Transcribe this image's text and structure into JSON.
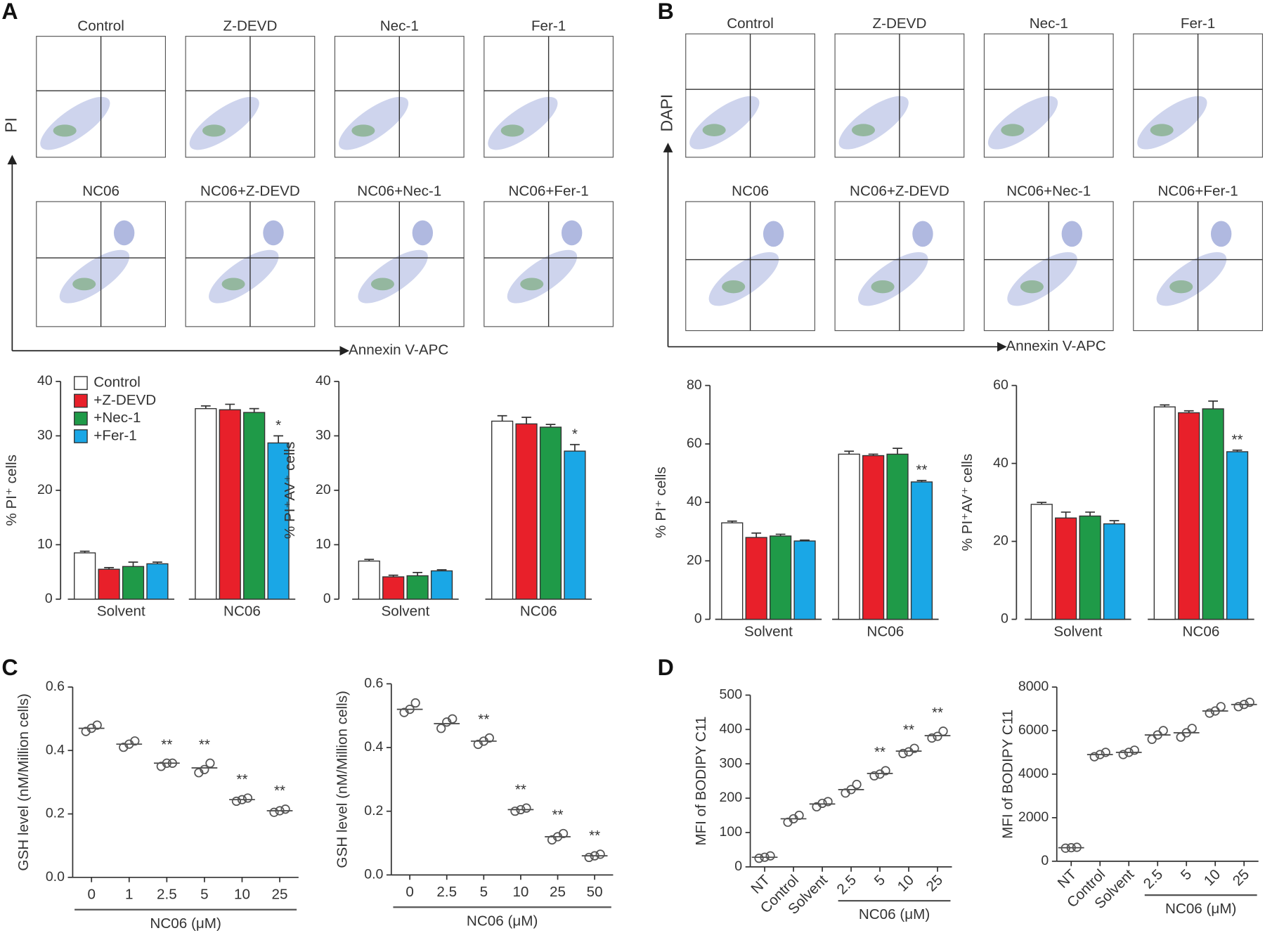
{
  "panel_labels": [
    "A",
    "B",
    "C",
    "D"
  ],
  "chart_data": [
    {
      "type": "flow",
      "titles": [
        "Control",
        "Z-DEVD",
        "Nec-1",
        "Fer-1",
        "NC06",
        "NC06+Z-DEVD",
        "NC06+Nec-1",
        "NC06+Fer-1"
      ],
      "xlabel": "Annexin V-APC",
      "ylabel": "PI"
    },
    {
      "type": "flow",
      "titles": [
        "Control",
        "Z-DEVD",
        "Nec-1",
        "Fer-1",
        "NC06",
        "NC06+Z-DEVD",
        "NC06+Nec-1",
        "NC06+Fer-1"
      ],
      "xlabel": "Annexin V-APC",
      "ylabel": "DAPI"
    },
    {
      "type": "bar",
      "ylabel": "% PI⁺ cells",
      "categories": [
        "Solvent",
        "NC06"
      ],
      "ylim": [
        0,
        40
      ],
      "yticks": [
        0,
        10,
        20,
        30,
        40
      ],
      "series": [
        {
          "name": "Control",
          "color": "#ffffff",
          "values": [
            8.5,
            35
          ],
          "errors": [
            0.3,
            0.5
          ]
        },
        {
          "name": "+Z-DEVD",
          "color": "#e8202a",
          "values": [
            5.5,
            34.8
          ],
          "errors": [
            0.3,
            1.0
          ]
        },
        {
          "name": "+Nec-1",
          "color": "#1f9a48",
          "values": [
            6.0,
            34.3
          ],
          "errors": [
            0.8,
            0.7
          ]
        },
        {
          "name": "+Fer-1",
          "color": "#1aa7e6",
          "values": [
            6.5,
            28.7
          ],
          "errors": [
            0.3,
            1.3
          ],
          "annotations": [
            null,
            "*"
          ]
        }
      ]
    },
    {
      "type": "bar",
      "ylabel": "% PI⁺AV⁺ cells",
      "categories": [
        "Solvent",
        "NC06"
      ],
      "ylim": [
        0,
        40
      ],
      "yticks": [
        0,
        10,
        20,
        30,
        40
      ],
      "series": [
        {
          "color": "#ffffff",
          "values": [
            7.0,
            32.7
          ],
          "errors": [
            0.3,
            1.0
          ]
        },
        {
          "color": "#e8202a",
          "values": [
            4.1,
            32.2
          ],
          "errors": [
            0.3,
            1.2
          ]
        },
        {
          "color": "#1f9a48",
          "values": [
            4.3,
            31.6
          ],
          "errors": [
            0.6,
            0.5
          ]
        },
        {
          "color": "#1aa7e6",
          "values": [
            5.2,
            27.2
          ],
          "errors": [
            0.2,
            1.2
          ],
          "annotations": [
            null,
            "*"
          ]
        }
      ]
    },
    {
      "type": "bar",
      "ylabel": "% PI⁺ cells",
      "categories": [
        "Solvent",
        "NC06"
      ],
      "ylim": [
        0,
        80
      ],
      "yticks": [
        0,
        20,
        40,
        60,
        80
      ],
      "series": [
        {
          "color": "#ffffff",
          "values": [
            33,
            56.5
          ],
          "errors": [
            0.6,
            1.0
          ]
        },
        {
          "color": "#e8202a",
          "values": [
            28,
            56
          ],
          "errors": [
            1.5,
            0.5
          ]
        },
        {
          "color": "#1f9a48",
          "values": [
            28.5,
            56.5
          ],
          "errors": [
            0.6,
            2.0
          ]
        },
        {
          "color": "#1aa7e6",
          "values": [
            26.8,
            47
          ],
          "errors": [
            0.3,
            0.5
          ],
          "annotations": [
            null,
            "**"
          ]
        }
      ]
    },
    {
      "type": "bar",
      "ylabel": "% PI⁺AV⁺ cells",
      "categories": [
        "Solvent",
        "NC06"
      ],
      "ylim": [
        0,
        60
      ],
      "yticks": [
        0,
        20,
        40,
        60
      ],
      "series": [
        {
          "color": "#ffffff",
          "values": [
            29.5,
            54.5
          ],
          "errors": [
            0.5,
            0.5
          ]
        },
        {
          "color": "#e8202a",
          "values": [
            26,
            53
          ],
          "errors": [
            1.5,
            0.5
          ]
        },
        {
          "color": "#1f9a48",
          "values": [
            26.5,
            54
          ],
          "errors": [
            1.0,
            2.0
          ]
        },
        {
          "color": "#1aa7e6",
          "values": [
            24.5,
            43
          ],
          "errors": [
            0.8,
            0.4
          ],
          "annotations": [
            null,
            "**"
          ]
        }
      ]
    },
    {
      "type": "dot",
      "ylabel": "GSH level (nM/Million cells)",
      "xlabel": "NC06 (μM)",
      "categories": [
        "0",
        "1",
        "2.5",
        "5",
        "10",
        "25"
      ],
      "ylim": [
        0,
        0.6
      ],
      "yticks": [
        {
          "value": 0,
          "label": "0.0"
        },
        0.2,
        0.4,
        0.6
      ],
      "values": [
        [
          0.46,
          0.47,
          0.48
        ],
        [
          0.41,
          0.42,
          0.43
        ],
        [
          0.35,
          0.36,
          0.36
        ],
        [
          0.33,
          0.34,
          0.36
        ],
        [
          0.24,
          0.245,
          0.25
        ],
        [
          0.205,
          0.21,
          0.215
        ]
      ],
      "means": [
        0.47,
        0.42,
        0.36,
        0.345,
        0.245,
        0.21
      ],
      "annotations": [
        null,
        null,
        "**",
        "**",
        "**",
        "**"
      ]
    },
    {
      "type": "dot",
      "ylabel": "GSH level (nM/Million cells)",
      "xlabel": "NC06 (μM)",
      "categories": [
        "0",
        "2.5",
        "5",
        "10",
        "25",
        "50"
      ],
      "ylim": [
        0,
        0.6
      ],
      "yticks": [
        {
          "value": 0,
          "label": "0.0"
        },
        0.2,
        0.4,
        0.6
      ],
      "values": [
        [
          0.51,
          0.52,
          0.54
        ],
        [
          0.46,
          0.48,
          0.49
        ],
        [
          0.41,
          0.42,
          0.43
        ],
        [
          0.2,
          0.205,
          0.21
        ],
        [
          0.11,
          0.12,
          0.13
        ],
        [
          0.055,
          0.06,
          0.065
        ]
      ],
      "means": [
        0.52,
        0.475,
        0.42,
        0.205,
        0.12,
        0.06
      ],
      "annotations": [
        null,
        null,
        "**",
        "**",
        "**",
        "**"
      ]
    },
    {
      "type": "dot",
      "ylabel": "MFI of BODIPY C11",
      "xlabel": "NC06 (μM)",
      "categories": [
        "NT",
        "Control",
        "Solvent",
        "2.5",
        "5",
        "10",
        "25"
      ],
      "ylim": [
        0,
        500
      ],
      "yticks": [
        0,
        100,
        200,
        300,
        400,
        500
      ],
      "values": [
        [
          25,
          28,
          32
        ],
        [
          130,
          140,
          150
        ],
        [
          175,
          185,
          190
        ],
        [
          215,
          225,
          240
        ],
        [
          265,
          270,
          280
        ],
        [
          330,
          335,
          345
        ],
        [
          375,
          380,
          395
        ]
      ],
      "means": [
        28,
        140,
        183,
        225,
        272,
        337,
        382
      ],
      "annotations": [
        null,
        null,
        null,
        null,
        "**",
        "**",
        "**"
      ]
    },
    {
      "type": "dot",
      "ylabel": "MFI of BODIPY C11",
      "xlabel": "NC06 (μM)",
      "categories": [
        "NT",
        "Control",
        "Solvent",
        "2.5",
        "5",
        "10",
        "25"
      ],
      "ylim": [
        0,
        8000
      ],
      "yticks": [
        0,
        2000,
        4000,
        6000,
        8000
      ],
      "values": [
        [
          600,
          620,
          640
        ],
        [
          4800,
          4900,
          5000
        ],
        [
          4900,
          5000,
          5100
        ],
        [
          5600,
          5800,
          6000
        ],
        [
          5700,
          5900,
          6100
        ],
        [
          6800,
          6900,
          7100
        ],
        [
          7100,
          7200,
          7300
        ]
      ],
      "means": [
        620,
        4900,
        5000,
        5800,
        5900,
        6900,
        7200
      ]
    }
  ]
}
